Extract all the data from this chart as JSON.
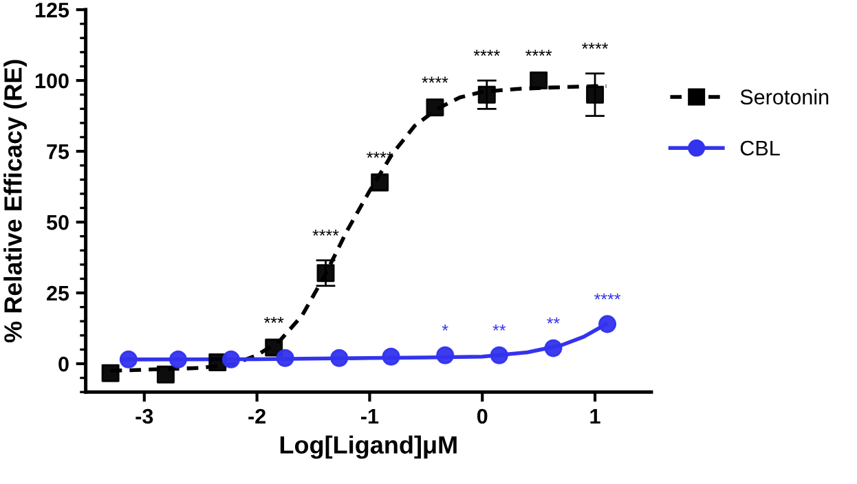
{
  "chart_data": {
    "type": "scatter",
    "xlabel": "Log[Ligand]μM",
    "ylabel": "% Relative Efficacy (RE)",
    "xlim": [
      -3.52,
      1.5
    ],
    "xticks": [
      {
        "value": -3,
        "label": "-3"
      },
      {
        "value": -2,
        "label": "-2"
      },
      {
        "value": -1,
        "label": "-1"
      },
      0,
      1
    ],
    "ylim": [
      -10,
      125
    ],
    "yticks": [
      0,
      25,
      50,
      75,
      100,
      125
    ],
    "grid": false,
    "legend": "right",
    "series": [
      {
        "name": "Serotonin",
        "color": "#000000",
        "marker": "square",
        "line_style": "dashed",
        "x": [
          -3.3,
          -2.81,
          -2.35,
          -1.85,
          -1.39,
          -0.91,
          -0.42,
          0.04,
          0.5,
          1.0
        ],
        "values": [
          -3.3,
          -3.8,
          0.5,
          5.7,
          32,
          64,
          90.5,
          95,
          100,
          95
        ],
        "errors": [
          null,
          null,
          null,
          null,
          4.5,
          null,
          null,
          5,
          null,
          7.5
        ]
      },
      {
        "type": "line",
        "color": "#000000",
        "line_style": "dashed",
        "x": [
          -3.3,
          -2.5,
          -2.2,
          -2.0,
          -1.8,
          -1.6,
          -1.4,
          -1.2,
          -1.0,
          -0.8,
          -0.6,
          -0.4,
          -0.2,
          0,
          0.3,
          0.6,
          1.0,
          1.1
        ],
        "values": [
          -2.5,
          -1.5,
          0,
          3,
          8,
          17,
          31,
          47,
          61,
          74,
          84,
          90,
          94,
          96,
          97,
          97.5,
          98,
          98
        ]
      },
      {
        "name": "CBL",
        "color": "#3333ee",
        "marker": "circle",
        "line_style": "solid",
        "x": [
          -3.14,
          -2.7,
          -2.23,
          -1.75,
          -1.27,
          -0.81,
          -0.33,
          0.15,
          0.63,
          1.11
        ],
        "values": [
          1.5,
          1.5,
          1.5,
          2,
          2,
          2.5,
          3,
          3,
          5.5,
          14
        ]
      },
      {
        "type": "line",
        "color": "#3333ee",
        "line_style": "solid",
        "x": [
          -3.2,
          -2.0,
          -1.0,
          -0.5,
          0,
          0.4,
          0.7,
          0.9,
          1.1
        ],
        "values": [
          1.5,
          1.6,
          2,
          2.2,
          2.5,
          4,
          6.5,
          9.5,
          14
        ]
      }
    ],
    "annotations": [
      {
        "text": "***",
        "x": -1.85,
        "y": 5.7
      },
      {
        "text": "****",
        "x": -1.39,
        "y": 32
      },
      {
        "text": "****",
        "x": -0.91,
        "y": 64
      },
      {
        "text": "****",
        "x": -0.42,
        "y": 90.5
      },
      {
        "text": "****",
        "x": 0.04,
        "y": 95
      },
      {
        "text": "****",
        "x": 0.5,
        "y": 100
      },
      {
        "text": "****",
        "x": 1.0,
        "y": 95
      },
      {
        "text": "*",
        "x": -0.33,
        "y": 3
      },
      {
        "text": "**",
        "x": 0.15,
        "y": 3
      },
      {
        "text": "**",
        "x": 0.63,
        "y": 5.5
      },
      {
        "text": "****",
        "x": 1.11,
        "y": 14
      }
    ]
  }
}
